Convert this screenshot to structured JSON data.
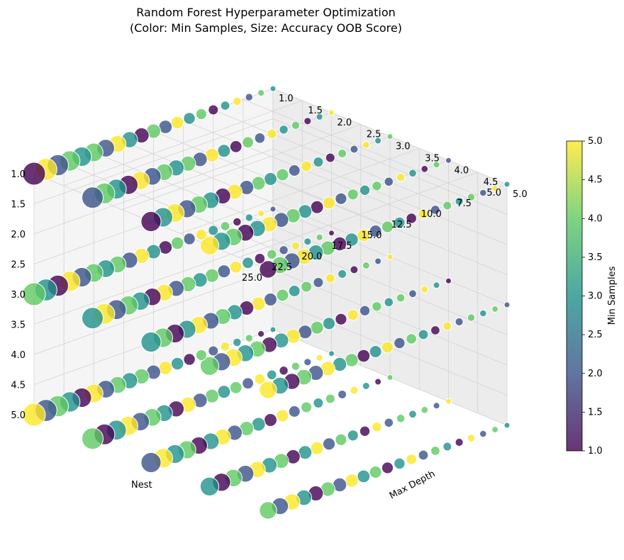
{
  "chart_data": {
    "type": "scatter",
    "title": "Random Forest Hyperparameter Optimization",
    "subtitle": "(Color: Min Samples, Size: Accuracy OOB Score)",
    "xlabel": "Nest",
    "ylabel": "Max Depth",
    "zlabel": "",
    "x_ticks": [
      "5.0",
      "7.5",
      "10.0",
      "12.5",
      "15.0",
      "17.5",
      "20.0",
      "22.5",
      "25.0"
    ],
    "y_ticks": [
      "1.0",
      "1.5",
      "2.0",
      "2.5",
      "3.0",
      "3.5",
      "4.0",
      "4.5",
      "5.0"
    ],
    "z_ticks": [
      "1.0",
      "1.5",
      "2.0",
      "2.5",
      "3.0",
      "3.5",
      "4.0",
      "4.5",
      "5.0"
    ],
    "xlim": [
      5,
      25
    ],
    "ylim": [
      1,
      5
    ],
    "zlim": [
      1,
      5
    ],
    "grid": true,
    "colorbar": {
      "label": "Min Samples",
      "ticks": [
        "1.0",
        "1.5",
        "2.0",
        "2.5",
        "3.0",
        "3.5",
        "4.0",
        "4.5",
        "5.0"
      ],
      "range": [
        1,
        5
      ],
      "colormap": [
        "#440154",
        "#3b528b",
        "#21918c",
        "#5ec962",
        "#fde725"
      ]
    },
    "points": {
      "nest_values": [
        5,
        6,
        7,
        8,
        9,
        10,
        11,
        12,
        13,
        14,
        15,
        16,
        17,
        18,
        19,
        20,
        21,
        22,
        23,
        24,
        25
      ],
      "max_depth_values": [
        1,
        2,
        3,
        4,
        5
      ],
      "third_axis_values": [
        1,
        3,
        5
      ],
      "description_fields": [
        "nest",
        "max_depth",
        "third_axis",
        "min_samples",
        "accuracy"
      ],
      "min_samples_pattern": [
        4,
        2,
        5,
        1,
        3,
        4,
        2,
        5,
        3,
        1,
        4,
        3,
        5,
        2,
        4,
        1,
        3,
        5,
        2,
        4,
        3
      ],
      "accuracy_range": [
        0.6,
        0.95
      ]
    }
  }
}
